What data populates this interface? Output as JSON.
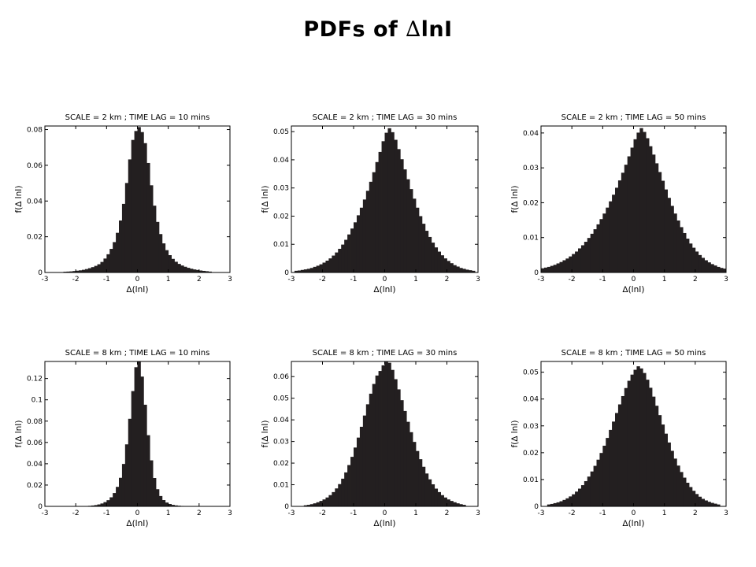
{
  "title": {
    "prefix": "PDFs of ",
    "delta": "∆",
    "suffix": "lnI"
  },
  "chart_data": [
    {
      "type": "bar",
      "title": "SCALE = 2 km ; TIME LAG = 10 mins",
      "xlabel": "∆(lnI)",
      "ylabel": "f(∆ lnI)",
      "xlim": [
        -3,
        3
      ],
      "ylim": [
        0,
        0.082
      ],
      "xticks": [
        "-3",
        "-2",
        "-1",
        "0",
        "1",
        "2",
        "3"
      ],
      "yticks": [
        "0",
        "0.02",
        "0.04",
        "0.06",
        "0.08"
      ],
      "x": [
        -2.35,
        -2.25,
        -2.15,
        -2.05,
        -1.95,
        -1.85,
        -1.75,
        -1.65,
        -1.55,
        -1.45,
        -1.35,
        -1.25,
        -1.15,
        -1.05,
        -0.95,
        -0.85,
        -0.75,
        -0.65,
        -0.55,
        -0.45,
        -0.35,
        -0.25,
        -0.15,
        -0.05,
        0.05,
        0.15,
        0.25,
        0.35,
        0.45,
        0.55,
        0.65,
        0.75,
        0.85,
        0.95,
        1.05,
        1.15,
        1.25,
        1.35,
        1.45,
        1.55,
        1.65,
        1.75,
        1.85,
        1.95,
        2.05,
        2.15,
        2.25,
        2.35
      ],
      "values": [
        0.0004,
        0.0005,
        0.0006,
        0.0008,
        0.001,
        0.0012,
        0.0015,
        0.0019,
        0.0024,
        0.003,
        0.0037,
        0.0046,
        0.0059,
        0.0078,
        0.0102,
        0.0132,
        0.017,
        0.0222,
        0.0291,
        0.0384,
        0.0501,
        0.0633,
        0.0742,
        0.0792,
        0.0814,
        0.0786,
        0.0724,
        0.0613,
        0.0488,
        0.0374,
        0.0283,
        0.0215,
        0.0163,
        0.0125,
        0.0097,
        0.0076,
        0.006,
        0.0048,
        0.0039,
        0.0032,
        0.0026,
        0.0021,
        0.0017,
        0.0014,
        0.0011,
        0.0009,
        0.0007,
        0.0005
      ]
    },
    {
      "type": "bar",
      "title": "SCALE = 2 km ; TIME LAG = 30 mins",
      "xlabel": "∆(lnI)",
      "ylabel": "f(∆ lnI)",
      "xlim": [
        -3,
        3
      ],
      "ylim": [
        0,
        0.052
      ],
      "xticks": [
        "-3",
        "-2",
        "-1",
        "0",
        "1",
        "2",
        "3"
      ],
      "yticks": [
        "0",
        "0.01",
        "0.02",
        "0.03",
        "0.04",
        "0.05"
      ],
      "x": [
        -2.85,
        -2.75,
        -2.65,
        -2.55,
        -2.45,
        -2.35,
        -2.25,
        -2.15,
        -2.05,
        -1.95,
        -1.85,
        -1.75,
        -1.65,
        -1.55,
        -1.45,
        -1.35,
        -1.25,
        -1.15,
        -1.05,
        -0.95,
        -0.85,
        -0.75,
        -0.65,
        -0.55,
        -0.45,
        -0.35,
        -0.25,
        -0.15,
        -0.05,
        0.05,
        0.15,
        0.25,
        0.35,
        0.45,
        0.55,
        0.65,
        0.75,
        0.85,
        0.95,
        1.05,
        1.15,
        1.25,
        1.35,
        1.45,
        1.55,
        1.65,
        1.75,
        1.85,
        1.95,
        2.05,
        2.15,
        2.25,
        2.35,
        2.45,
        2.55,
        2.65,
        2.75,
        2.85
      ],
      "values": [
        0.0006,
        0.0007,
        0.0009,
        0.0011,
        0.0013,
        0.0016,
        0.002,
        0.0024,
        0.0029,
        0.0035,
        0.0042,
        0.005,
        0.006,
        0.0071,
        0.0084,
        0.0099,
        0.0116,
        0.0135,
        0.0156,
        0.0178,
        0.0203,
        0.023,
        0.0259,
        0.029,
        0.0322,
        0.0356,
        0.0392,
        0.0428,
        0.0466,
        0.0496,
        0.0512,
        0.0498,
        0.0471,
        0.0438,
        0.0402,
        0.0366,
        0.0331,
        0.0296,
        0.0262,
        0.023,
        0.02,
        0.0173,
        0.0148,
        0.0126,
        0.0106,
        0.0089,
        0.0074,
        0.0061,
        0.005,
        0.0041,
        0.0033,
        0.0026,
        0.0021,
        0.0016,
        0.0013,
        0.001,
        0.0008,
        0.0006
      ]
    },
    {
      "type": "bar",
      "title": "SCALE = 2 km ; TIME LAG = 50 mins",
      "xlabel": "∆(lnI)",
      "ylabel": "f(∆ lnI)",
      "xlim": [
        -3,
        3
      ],
      "ylim": [
        0,
        0.042
      ],
      "xticks": [
        "-3",
        "-2",
        "-1",
        "0",
        "1",
        "2",
        "3"
      ],
      "yticks": [
        "0",
        "0.01",
        "0.02",
        "0.03",
        "0.04"
      ],
      "x": [
        -2.95,
        -2.85,
        -2.75,
        -2.65,
        -2.55,
        -2.45,
        -2.35,
        -2.25,
        -2.15,
        -2.05,
        -1.95,
        -1.85,
        -1.75,
        -1.65,
        -1.55,
        -1.45,
        -1.35,
        -1.25,
        -1.15,
        -1.05,
        -0.95,
        -0.85,
        -0.75,
        -0.65,
        -0.55,
        -0.45,
        -0.35,
        -0.25,
        -0.15,
        -0.05,
        0.05,
        0.15,
        0.25,
        0.35,
        0.45,
        0.55,
        0.65,
        0.75,
        0.85,
        0.95,
        1.05,
        1.15,
        1.25,
        1.35,
        1.45,
        1.55,
        1.65,
        1.75,
        1.85,
        1.95,
        2.05,
        2.15,
        2.25,
        2.35,
        2.45,
        2.55,
        2.65,
        2.75,
        2.85,
        2.95
      ],
      "values": [
        0.0012,
        0.0014,
        0.0016,
        0.0019,
        0.0022,
        0.0026,
        0.003,
        0.0035,
        0.004,
        0.0046,
        0.0053,
        0.006,
        0.0069,
        0.0078,
        0.0088,
        0.0099,
        0.0111,
        0.0124,
        0.0138,
        0.0153,
        0.0169,
        0.0186,
        0.0204,
        0.0223,
        0.0243,
        0.0264,
        0.0286,
        0.0309,
        0.0333,
        0.0358,
        0.0382,
        0.0401,
        0.0414,
        0.0403,
        0.0385,
        0.0362,
        0.0338,
        0.0313,
        0.0288,
        0.0263,
        0.0238,
        0.0214,
        0.0191,
        0.0169,
        0.0149,
        0.013,
        0.0113,
        0.0097,
        0.0083,
        0.0071,
        0.006,
        0.005,
        0.0042,
        0.0035,
        0.0029,
        0.0024,
        0.002,
        0.0016,
        0.0013,
        0.0011
      ]
    },
    {
      "type": "bar",
      "title": "SCALE = 8 km ; TIME LAG = 10 mins",
      "xlabel": "∆(lnI)",
      "ylabel": "f(∆ lnI)",
      "xlim": [
        -3,
        3
      ],
      "ylim": [
        0,
        0.136
      ],
      "xticks": [
        "-3",
        "-2",
        "-1",
        "0",
        "1",
        "2",
        "3"
      ],
      "yticks": [
        "0",
        "0.02",
        "0.04",
        "0.06",
        "0.08",
        "0.1",
        "0.12"
      ],
      "x": [
        -1.55,
        -1.45,
        -1.35,
        -1.25,
        -1.15,
        -1.05,
        -0.95,
        -0.85,
        -0.75,
        -0.65,
        -0.55,
        -0.45,
        -0.35,
        -0.25,
        -0.15,
        -0.05,
        0.05,
        0.15,
        0.25,
        0.35,
        0.45,
        0.55,
        0.65,
        0.75,
        0.85,
        0.95,
        1.05,
        1.15,
        1.25,
        1.35,
        1.45,
        1.55
      ],
      "values": [
        0.0005,
        0.0008,
        0.0012,
        0.0018,
        0.0027,
        0.004,
        0.0058,
        0.0085,
        0.0125,
        0.0183,
        0.0268,
        0.0398,
        0.0582,
        0.0822,
        0.1082,
        0.1306,
        0.1362,
        0.1218,
        0.0954,
        0.0668,
        0.0432,
        0.0266,
        0.0161,
        0.0097,
        0.0059,
        0.0036,
        0.0022,
        0.0014,
        0.0009,
        0.0006,
        0.0004,
        0.0003
      ]
    },
    {
      "type": "bar",
      "title": "SCALE = 8 km ; TIME LAG = 30 mins",
      "xlabel": "∆(lnI)",
      "ylabel": "f(∆ lnI)",
      "xlim": [
        -3,
        3
      ],
      "ylim": [
        0,
        0.067
      ],
      "xticks": [
        "-3",
        "-2",
        "-1",
        "0",
        "1",
        "2",
        "3"
      ],
      "yticks": [
        "0",
        "0.01",
        "0.02",
        "0.03",
        "0.04",
        "0.05",
        "0.06"
      ],
      "x": [
        -2.55,
        -2.45,
        -2.35,
        -2.25,
        -2.15,
        -2.05,
        -1.95,
        -1.85,
        -1.75,
        -1.65,
        -1.55,
        -1.45,
        -1.35,
        -1.25,
        -1.15,
        -1.05,
        -0.95,
        -0.85,
        -0.75,
        -0.65,
        -0.55,
        -0.45,
        -0.35,
        -0.25,
        -0.15,
        -0.05,
        0.05,
        0.15,
        0.25,
        0.35,
        0.45,
        0.55,
        0.65,
        0.75,
        0.85,
        0.95,
        1.05,
        1.15,
        1.25,
        1.35,
        1.45,
        1.55,
        1.65,
        1.75,
        1.85,
        1.95,
        2.05,
        2.15,
        2.25,
        2.35,
        2.45,
        2.55
      ],
      "values": [
        0.0005,
        0.0007,
        0.001,
        0.0014,
        0.0019,
        0.0025,
        0.0032,
        0.0041,
        0.0052,
        0.0066,
        0.0083,
        0.0103,
        0.0128,
        0.0157,
        0.0191,
        0.0229,
        0.0272,
        0.0318,
        0.0368,
        0.042,
        0.0472,
        0.0521,
        0.0566,
        0.0605,
        0.0626,
        0.0652,
        0.0668,
        0.0664,
        0.0631,
        0.0588,
        0.0541,
        0.0491,
        0.0441,
        0.0391,
        0.0343,
        0.0298,
        0.0256,
        0.0218,
        0.0183,
        0.0152,
        0.0125,
        0.0102,
        0.0082,
        0.0066,
        0.0052,
        0.0041,
        0.0032,
        0.0025,
        0.0019,
        0.0014,
        0.001,
        0.0007
      ]
    },
    {
      "type": "bar",
      "title": "SCALE = 8 km ; TIME LAG = 50 mins",
      "xlabel": "∆(lnI)",
      "ylabel": "f(∆ lnI)",
      "xlim": [
        -3,
        3
      ],
      "ylim": [
        0,
        0.054
      ],
      "xticks": [
        "-3",
        "-2",
        "-1",
        "0",
        "1",
        "2",
        "3"
      ],
      "yticks": [
        "0",
        "0.01",
        "0.02",
        "0.03",
        "0.04",
        "0.05"
      ],
      "x": [
        -2.75,
        -2.65,
        -2.55,
        -2.45,
        -2.35,
        -2.25,
        -2.15,
        -2.05,
        -1.95,
        -1.85,
        -1.75,
        -1.65,
        -1.55,
        -1.45,
        -1.35,
        -1.25,
        -1.15,
        -1.05,
        -0.95,
        -0.85,
        -0.75,
        -0.65,
        -0.55,
        -0.45,
        -0.35,
        -0.25,
        -0.15,
        -0.05,
        0.05,
        0.15,
        0.25,
        0.35,
        0.45,
        0.55,
        0.65,
        0.75,
        0.85,
        0.95,
        1.05,
        1.15,
        1.25,
        1.35,
        1.45,
        1.55,
        1.65,
        1.75,
        1.85,
        1.95,
        2.05,
        2.15,
        2.25,
        2.35,
        2.45,
        2.55,
        2.65,
        2.75
      ],
      "values": [
        0.0007,
        0.0009,
        0.0012,
        0.0015,
        0.0019,
        0.0024,
        0.003,
        0.0037,
        0.0045,
        0.0055,
        0.0066,
        0.0079,
        0.0094,
        0.0111,
        0.013,
        0.0151,
        0.0174,
        0.0199,
        0.0226,
        0.0255,
        0.0285,
        0.0316,
        0.0348,
        0.038,
        0.0411,
        0.0441,
        0.0468,
        0.0491,
        0.0509,
        0.0522,
        0.0514,
        0.0497,
        0.0472,
        0.0442,
        0.0409,
        0.0375,
        0.034,
        0.0305,
        0.0271,
        0.0238,
        0.0207,
        0.0178,
        0.0152,
        0.0128,
        0.0107,
        0.0088,
        0.0072,
        0.0058,
        0.0046,
        0.0036,
        0.0028,
        0.0022,
        0.0017,
        0.0013,
        0.001,
        0.0007
      ]
    }
  ]
}
